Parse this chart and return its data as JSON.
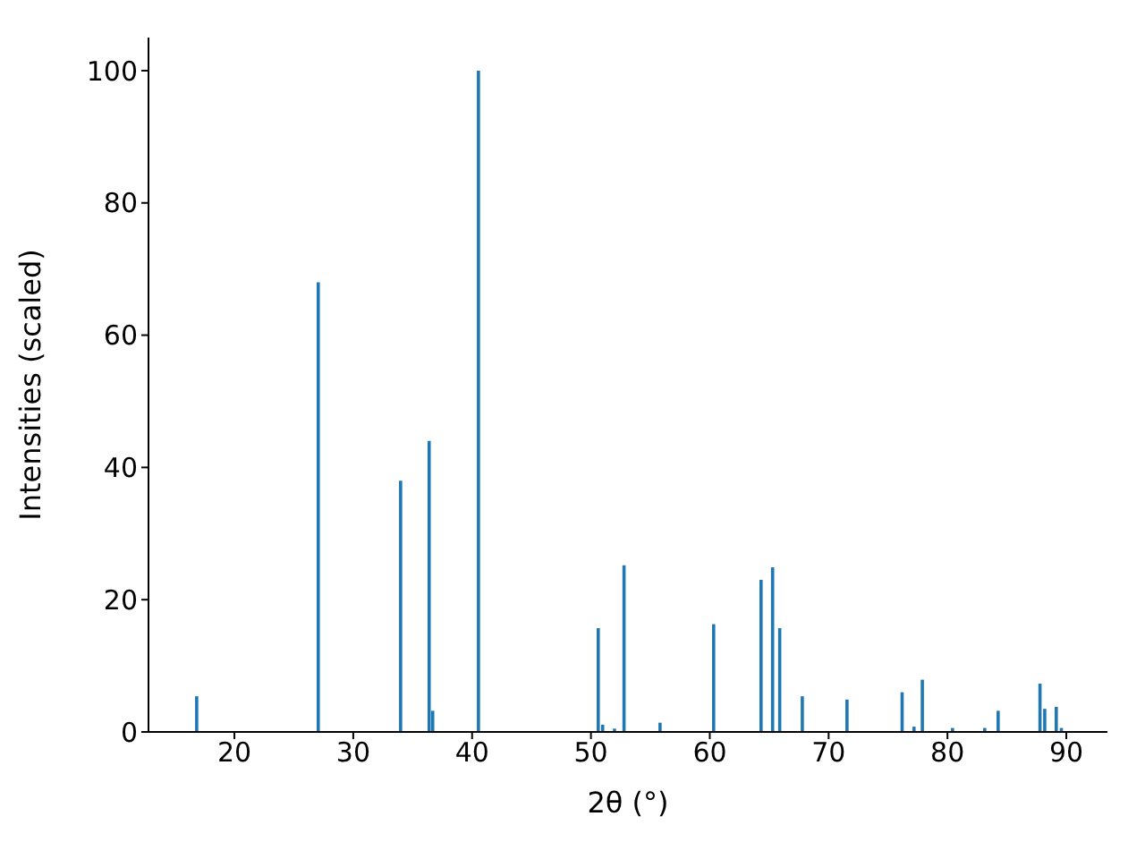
{
  "chart_data": {
    "type": "bar",
    "xlabel": "2θ (°)",
    "ylabel": "Intensities (scaled)",
    "x": [
      16.84,
      27.07,
      34.0,
      36.4,
      36.7,
      40.55,
      50.63,
      51.0,
      52.0,
      52.8,
      55.83,
      60.34,
      64.33,
      65.3,
      65.9,
      67.8,
      71.56,
      76.2,
      77.2,
      77.9,
      80.44,
      83.15,
      84.28,
      87.8,
      88.2,
      89.17,
      89.6
    ],
    "values": [
      5.4,
      68,
      38,
      44,
      3.2,
      100,
      15.7,
      1.1,
      0.5,
      25.2,
      1.4,
      16.3,
      23.0,
      24.9,
      15.7,
      5.4,
      4.9,
      6.0,
      0.8,
      7.9,
      0.6,
      0.6,
      3.2,
      7.3,
      3.5,
      3.8,
      0.6
    ],
    "color": "#1f77b4",
    "xlim": [
      12.77,
      93.46
    ],
    "xticks": [
      20,
      30,
      40,
      50,
      60,
      70,
      80,
      90
    ],
    "ylim": [
      0,
      105
    ],
    "yticks": [
      0,
      20,
      40,
      60,
      80,
      100
    ],
    "grid": false,
    "legend": false
  }
}
